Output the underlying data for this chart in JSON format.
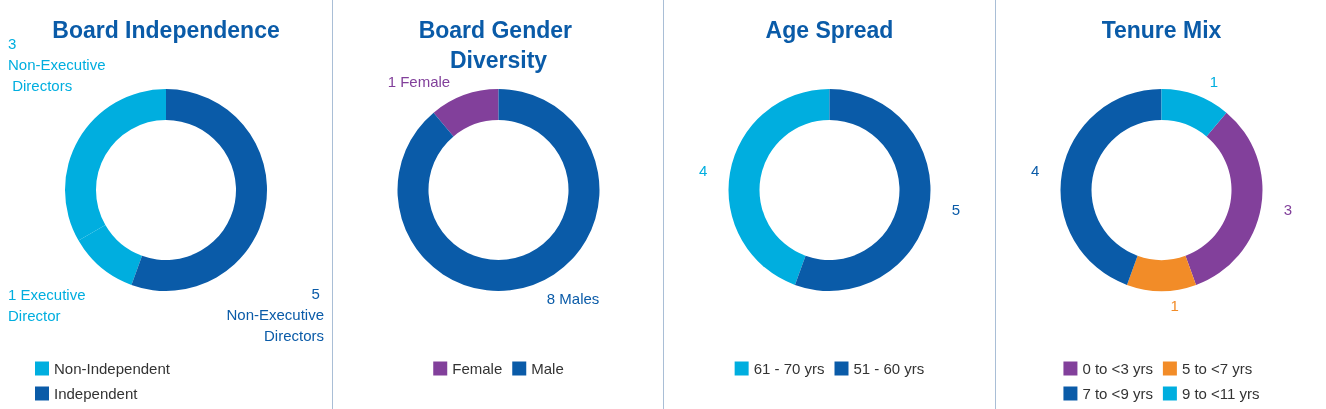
{
  "chart_data": [
    {
      "type": "donut",
      "title": "Board Independence",
      "categories": [
        "Non-Independent",
        null,
        "Independent"
      ],
      "values": [
        3,
        1,
        5
      ],
      "colors": [
        "#00aedf",
        "#00aedf",
        "#0a5ba8"
      ],
      "value_labels": [
        "3 Non-Executive Directors",
        "1 Executive Director",
        "5 Non-Executive Directors"
      ],
      "legend": "bottom"
    },
    {
      "type": "donut",
      "title": "Board Gender Diversity",
      "categories": [
        "Female",
        "Male"
      ],
      "values": [
        1,
        8
      ],
      "colors": [
        "#82409b",
        "#0a5ba8"
      ],
      "value_labels": [
        "1 Female",
        "8 Males"
      ],
      "legend": "bottom"
    },
    {
      "type": "donut",
      "title": "Age Spread",
      "categories": [
        "61 - 70 yrs",
        "51 - 60 yrs"
      ],
      "values": [
        4,
        5
      ],
      "colors": [
        "#00aedf",
        "#0a5ba8"
      ],
      "value_labels": [
        "4",
        "5"
      ],
      "legend": "bottom"
    },
    {
      "type": "donut",
      "title": "Tenure Mix",
      "categories": [
        "0 to <3 yrs",
        "5 to <7 yrs",
        "7 to <9 yrs",
        "9 to <11 yrs"
      ],
      "values": [
        3,
        1,
        4,
        1
      ],
      "colors": [
        "#82409b",
        "#f28c28",
        "#0a5ba8",
        "#00aedf"
      ],
      "value_labels": [
        "3",
        "1",
        "4",
        "1"
      ],
      "legend": "bottom"
    }
  ]
}
